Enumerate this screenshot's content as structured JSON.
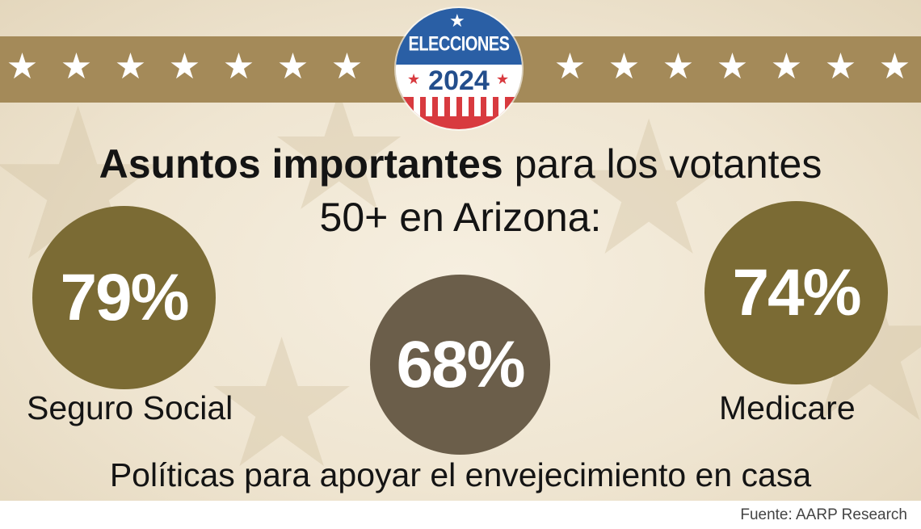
{
  "badge": {
    "title": "ELECCIONES",
    "year": "2024",
    "colors": {
      "blue": "#2a5fa5",
      "red": "#d83a3f"
    }
  },
  "headline": {
    "bold": "Asuntos importantes",
    "rest_line1": " para los votantes",
    "line2": "50+ en Arizona:"
  },
  "stats": [
    {
      "value": "79%",
      "label": "Seguro Social",
      "color": "#7b6b34"
    },
    {
      "value": "68%",
      "label": "Políticas para apoyar el envejecimiento en casa",
      "color": "#6b5e4a"
    },
    {
      "value": "74%",
      "label": "Medicare",
      "color": "#7b6b34"
    }
  ],
  "source": "Fuente: AARP Research",
  "colors": {
    "stripe": "#a48a59",
    "background": "#efe5d1"
  }
}
